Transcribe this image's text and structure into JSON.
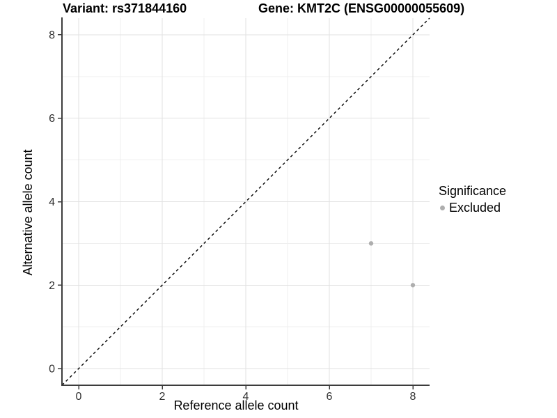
{
  "chart_data": {
    "type": "scatter",
    "title_left": "Variant: rs371844160",
    "title_right": "Gene: KMT2C (ENSG00000055609)",
    "xlabel": "Reference allele count",
    "ylabel": "Alternative allele count",
    "xlim": [
      -0.4,
      8.4
    ],
    "ylim": [
      -0.4,
      8.4
    ],
    "x_ticks": [
      0,
      2,
      4,
      6,
      8
    ],
    "y_ticks": [
      0,
      2,
      4,
      6,
      8
    ],
    "minor_grid": [
      1,
      3,
      5,
      7
    ],
    "grid": "on",
    "legend_position": "right",
    "legend_title": "Significance",
    "series": [
      {
        "name": "Excluded",
        "color": "#aeaeae",
        "points": [
          [
            7,
            3
          ],
          [
            8,
            2
          ]
        ]
      }
    ],
    "reference_line": {
      "slope": 1,
      "intercept": 0,
      "style": "dashed",
      "color": "#000000"
    },
    "style": {
      "background": "#ffffff",
      "grid_major": "#e2e2e2",
      "grid_minor": "#efefef",
      "axis_line": "#3c3c3c",
      "tick_text": "#303030",
      "title_text": "#000000"
    }
  }
}
